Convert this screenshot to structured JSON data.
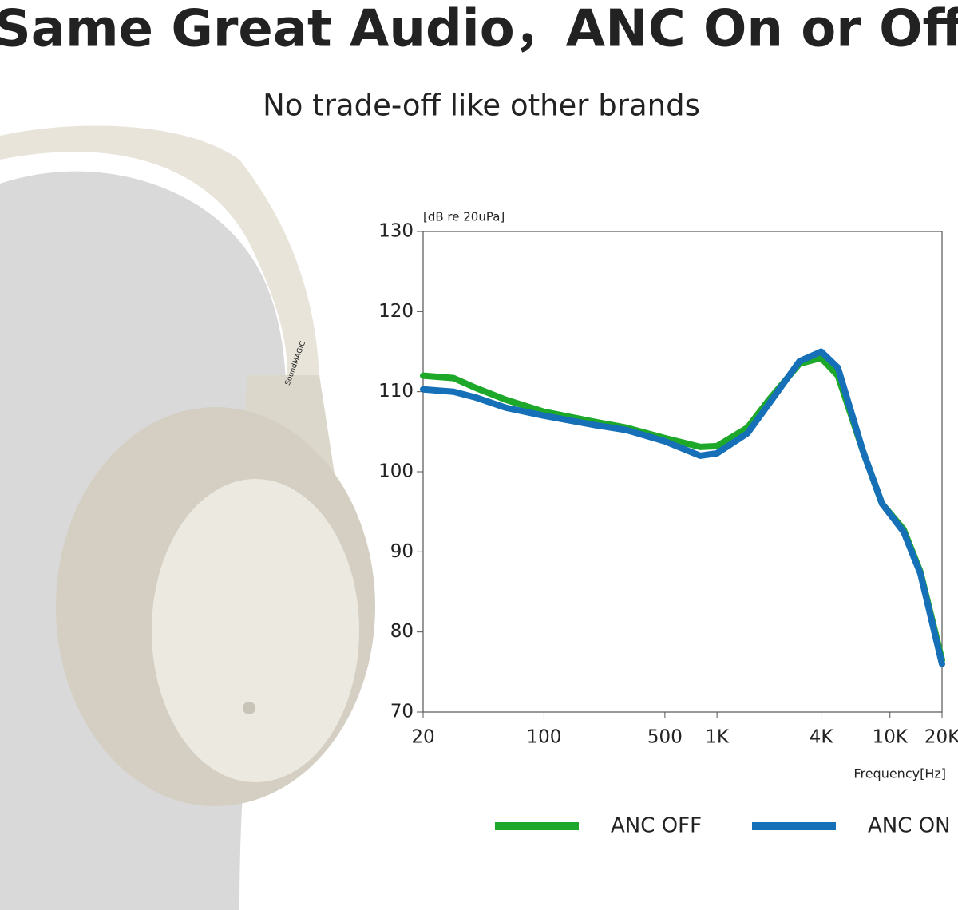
{
  "chart_data": {
    "type": "line",
    "title": "Same Great Audio，ANC On or Off",
    "subtitle": "No trade-off like other brands",
    "y_label": "[dB re 20uPa]",
    "x_label": "Frequency[Hz]",
    "xscale": "log",
    "x": [
      20,
      30,
      40,
      60,
      100,
      200,
      300,
      500,
      800,
      1000,
      1500,
      2000,
      3000,
      4000,
      5000,
      7000,
      9000,
      12000,
      15000,
      20000
    ],
    "series": [
      {
        "name": "ANC OFF",
        "color": "#1ea82a",
        "values": [
          112,
          111.7,
          110.5,
          109,
          107.5,
          106.2,
          105.5,
          104.2,
          103.1,
          103.2,
          105.5,
          109,
          113.5,
          114.2,
          112,
          102.5,
          96,
          92.8,
          87.5,
          76.5
        ]
      },
      {
        "name": "ANC ON",
        "color": "#1570b8",
        "values": [
          110.3,
          110,
          109.3,
          108,
          107,
          105.8,
          105.2,
          103.8,
          102,
          102.3,
          104.8,
          108.5,
          113.8,
          115,
          113,
          102.5,
          96,
          92.5,
          87.3,
          76
        ]
      }
    ],
    "xlim": [
      20,
      20000
    ],
    "xticks": [
      20,
      100,
      500,
      {
        "value": 1000,
        "label": "1K"
      },
      {
        "value": 4000,
        "label": "4K"
      },
      {
        "value": 10000,
        "label": "10K"
      },
      {
        "value": 20000,
        "label": "20K"
      }
    ],
    "ylim": [
      70,
      130
    ],
    "yticks": [
      70,
      80,
      90,
      100,
      110,
      120,
      130
    ],
    "legend": "bottom"
  },
  "product": {
    "brand": "SoundMAGIC"
  }
}
